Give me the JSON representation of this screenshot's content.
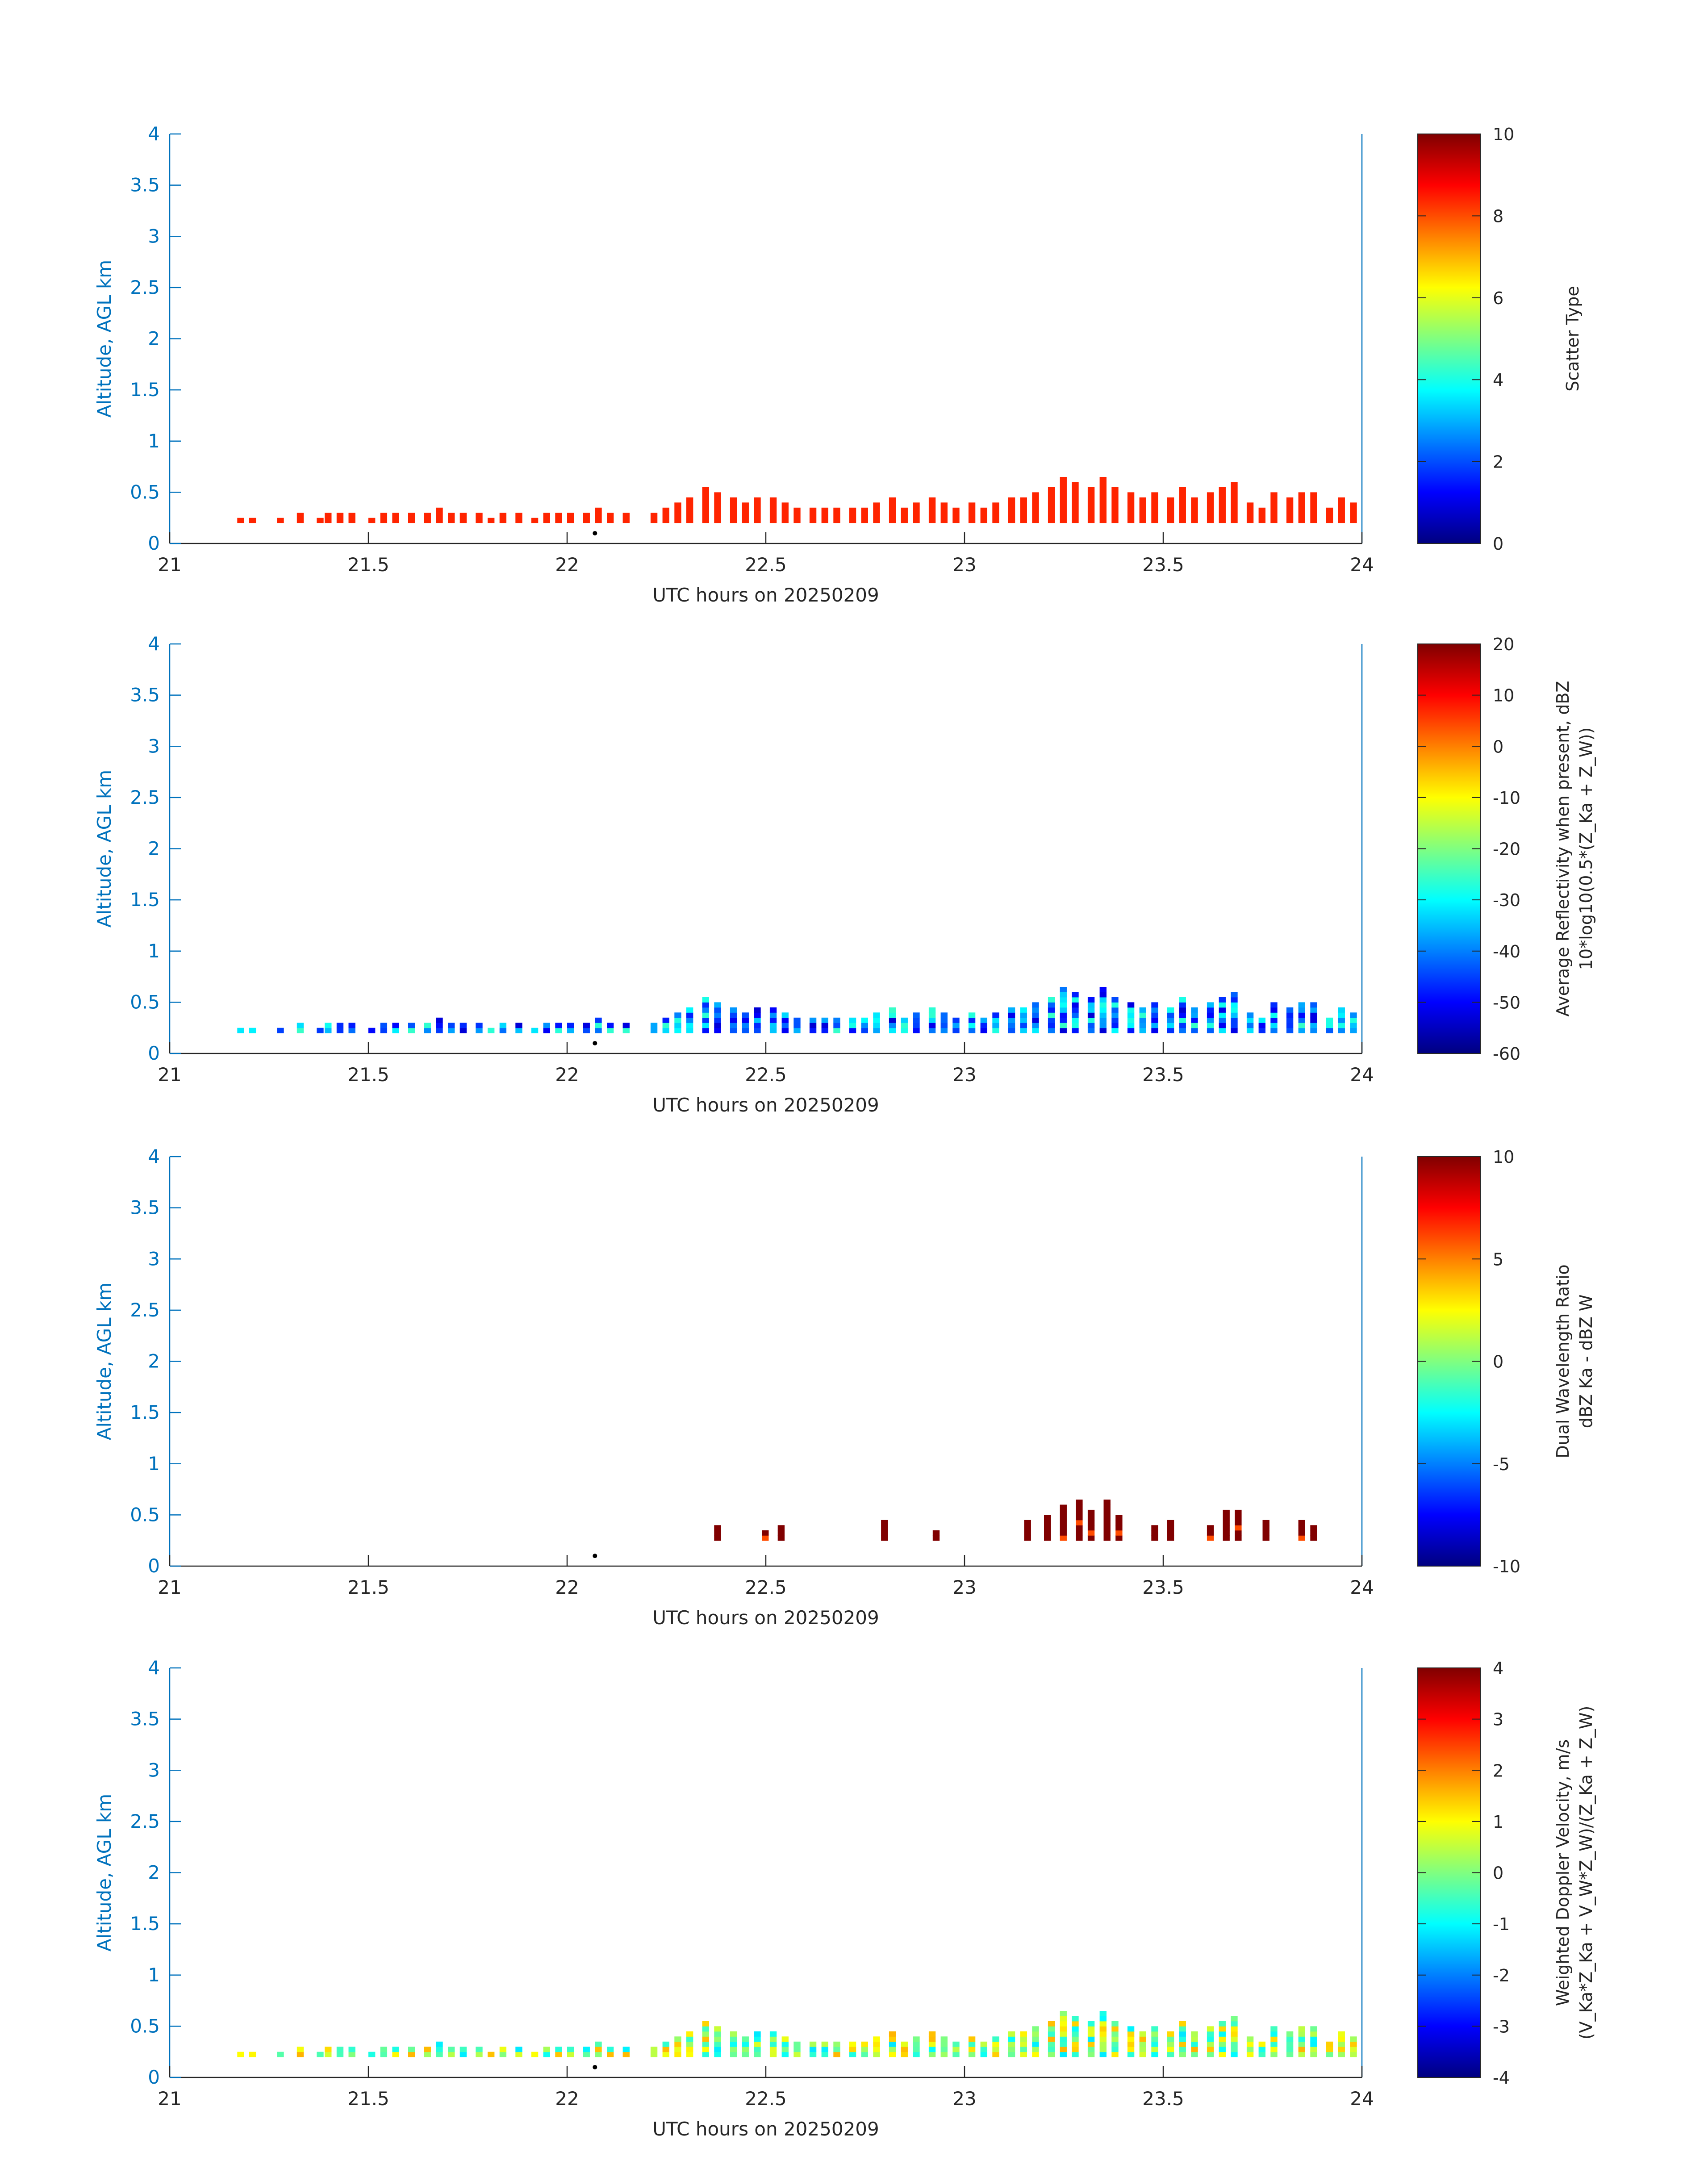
{
  "figure": {
    "xlabel": "UTC hours on 20250209",
    "ylabel": "Altitude, AGL km"
  },
  "chart_data": [
    {
      "type": "heatmap",
      "panel": 1,
      "xlim": [
        21,
        24
      ],
      "ylim": [
        0,
        4
      ],
      "xticks": [
        "21",
        "21.5",
        "22",
        "22.5",
        "23",
        "23.5",
        "24"
      ],
      "yticks": [
        "0",
        "0.5",
        "1",
        "1.5",
        "2",
        "2.5",
        "3",
        "3.5",
        "4"
      ],
      "xlabel": "UTC hours on 20250209",
      "ylabel": "Altitude, AGL km",
      "colorbar": {
        "label": [
          "Scatter Type"
        ],
        "range": [
          0,
          10
        ],
        "ticks": [
          "0",
          "2",
          "4",
          "6",
          "8",
          "10"
        ]
      },
      "field": "scatter_type",
      "grid": false
    },
    {
      "type": "heatmap",
      "panel": 2,
      "xlim": [
        21,
        24
      ],
      "ylim": [
        0,
        4
      ],
      "xticks": [
        "21",
        "21.5",
        "22",
        "22.5",
        "23",
        "23.5",
        "24"
      ],
      "yticks": [
        "0",
        "0.5",
        "1",
        "1.5",
        "2",
        "2.5",
        "3",
        "3.5",
        "4"
      ],
      "xlabel": "UTC hours on 20250209",
      "ylabel": "Altitude, AGL km",
      "colorbar": {
        "label": [
          "Average Reflectivity when present, dBZ",
          "10*log10(0.5*(Z_Ka + Z_W))"
        ],
        "range": [
          -60,
          20
        ],
        "ticks": [
          "-60",
          "-50",
          "-40",
          "-30",
          "-20",
          "-10",
          "0",
          "10",
          "20"
        ]
      },
      "field": "reflectivity",
      "grid": false
    },
    {
      "type": "heatmap",
      "panel": 3,
      "xlim": [
        21,
        24
      ],
      "ylim": [
        0,
        4
      ],
      "xticks": [
        "21",
        "21.5",
        "22",
        "22.5",
        "23",
        "23.5",
        "24"
      ],
      "yticks": [
        "0",
        "0.5",
        "1",
        "1.5",
        "2",
        "2.5",
        "3",
        "3.5",
        "4"
      ],
      "xlabel": "UTC hours on 20250209",
      "ylabel": "Altitude, AGL km",
      "colorbar": {
        "label": [
          "Dual Wavelength Ratio",
          "dBZ Ka - dBZ W"
        ],
        "range": [
          -10,
          10
        ],
        "ticks": [
          "-10",
          "-5",
          "0",
          "5",
          "10"
        ]
      },
      "field": "dwr",
      "grid": false
    },
    {
      "type": "heatmap",
      "panel": 4,
      "xlim": [
        21,
        24
      ],
      "ylim": [
        0,
        4
      ],
      "xticks": [
        "21",
        "21.5",
        "22",
        "22.5",
        "23",
        "23.5",
        "24"
      ],
      "yticks": [
        "0",
        "0.5",
        "1",
        "1.5",
        "2",
        "2.5",
        "3",
        "3.5",
        "4"
      ],
      "xlabel": "UTC hours on 20250209",
      "ylabel": "Altitude, AGL km",
      "colorbar": {
        "label": [
          "Weighted Doppler Velocity, m/s",
          "(V_Ka*Z_Ka + V_W*Z_W)/(Z_Ka + Z_W)"
        ],
        "range": [
          -4,
          4
        ],
        "ticks": [
          "-4",
          "-3",
          "-2",
          "-1",
          "0",
          "1",
          "2",
          "3",
          "4"
        ]
      },
      "field": "velocity",
      "grid": false
    }
  ],
  "data_columns": {
    "x_step_hours": 0.0167,
    "cells": [
      [
        21.17,
        0.2,
        0.25
      ],
      [
        21.2,
        0.2,
        0.25
      ],
      [
        21.27,
        0.2,
        0.25
      ],
      [
        21.32,
        0.2,
        0.3
      ],
      [
        21.37,
        0.2,
        0.25
      ],
      [
        21.39,
        0.2,
        0.3
      ],
      [
        21.42,
        0.2,
        0.3
      ],
      [
        21.45,
        0.2,
        0.3
      ],
      [
        21.5,
        0.2,
        0.25
      ],
      [
        21.53,
        0.2,
        0.3
      ],
      [
        21.56,
        0.2,
        0.3
      ],
      [
        21.6,
        0.2,
        0.3
      ],
      [
        21.64,
        0.2,
        0.3
      ],
      [
        21.67,
        0.2,
        0.35
      ],
      [
        21.7,
        0.2,
        0.3
      ],
      [
        21.73,
        0.2,
        0.3
      ],
      [
        21.77,
        0.2,
        0.3
      ],
      [
        21.8,
        0.2,
        0.25
      ],
      [
        21.83,
        0.2,
        0.3
      ],
      [
        21.87,
        0.2,
        0.3
      ],
      [
        21.91,
        0.2,
        0.25
      ],
      [
        21.94,
        0.2,
        0.3
      ],
      [
        21.97,
        0.2,
        0.3
      ],
      [
        22.0,
        0.2,
        0.3
      ],
      [
        22.04,
        0.2,
        0.3
      ],
      [
        22.07,
        0.2,
        0.35
      ],
      [
        22.1,
        0.2,
        0.3
      ],
      [
        22.14,
        0.2,
        0.3
      ],
      [
        22.21,
        0.2,
        0.3
      ],
      [
        22.24,
        0.2,
        0.35
      ],
      [
        22.27,
        0.2,
        0.4
      ],
      [
        22.3,
        0.2,
        0.45
      ],
      [
        22.34,
        0.2,
        0.55
      ],
      [
        22.37,
        0.2,
        0.5
      ],
      [
        22.41,
        0.2,
        0.45
      ],
      [
        22.44,
        0.2,
        0.4
      ],
      [
        22.47,
        0.2,
        0.45
      ],
      [
        22.51,
        0.2,
        0.45
      ],
      [
        22.54,
        0.2,
        0.4
      ],
      [
        22.57,
        0.2,
        0.35
      ],
      [
        22.61,
        0.2,
        0.35
      ],
      [
        22.64,
        0.2,
        0.35
      ],
      [
        22.67,
        0.2,
        0.35
      ],
      [
        22.71,
        0.2,
        0.35
      ],
      [
        22.74,
        0.2,
        0.35
      ],
      [
        22.77,
        0.2,
        0.4
      ],
      [
        22.81,
        0.2,
        0.45
      ],
      [
        22.84,
        0.2,
        0.35
      ],
      [
        22.87,
        0.2,
        0.4
      ],
      [
        22.91,
        0.2,
        0.45
      ],
      [
        22.94,
        0.2,
        0.4
      ],
      [
        22.97,
        0.2,
        0.35
      ],
      [
        23.01,
        0.2,
        0.4
      ],
      [
        23.04,
        0.2,
        0.35
      ],
      [
        23.07,
        0.2,
        0.4
      ],
      [
        23.11,
        0.2,
        0.45
      ],
      [
        23.14,
        0.2,
        0.45
      ],
      [
        23.17,
        0.2,
        0.5
      ],
      [
        23.21,
        0.2,
        0.55
      ],
      [
        23.24,
        0.2,
        0.65
      ],
      [
        23.27,
        0.2,
        0.6
      ],
      [
        23.31,
        0.2,
        0.55
      ],
      [
        23.34,
        0.2,
        0.65
      ],
      [
        23.37,
        0.2,
        0.55
      ],
      [
        23.41,
        0.2,
        0.5
      ],
      [
        23.44,
        0.2,
        0.45
      ],
      [
        23.47,
        0.2,
        0.5
      ],
      [
        23.51,
        0.2,
        0.45
      ],
      [
        23.54,
        0.2,
        0.55
      ],
      [
        23.57,
        0.2,
        0.45
      ],
      [
        23.61,
        0.2,
        0.5
      ],
      [
        23.64,
        0.2,
        0.55
      ],
      [
        23.67,
        0.2,
        0.6
      ],
      [
        23.71,
        0.2,
        0.4
      ],
      [
        23.74,
        0.2,
        0.35
      ],
      [
        23.77,
        0.2,
        0.5
      ],
      [
        23.81,
        0.2,
        0.45
      ],
      [
        23.84,
        0.2,
        0.5
      ],
      [
        23.87,
        0.2,
        0.5
      ],
      [
        23.91,
        0.2,
        0.35
      ],
      [
        23.94,
        0.2,
        0.45
      ],
      [
        23.97,
        0.2,
        0.4
      ]
    ],
    "dwr_cells": [
      [
        22.37,
        0.25,
        0.4
      ],
      [
        22.49,
        0.25,
        0.35
      ],
      [
        22.53,
        0.25,
        0.4
      ],
      [
        22.79,
        0.25,
        0.45
      ],
      [
        22.92,
        0.25,
        0.35
      ],
      [
        23.15,
        0.25,
        0.45
      ],
      [
        23.2,
        0.25,
        0.5
      ],
      [
        23.24,
        0.25,
        0.6
      ],
      [
        23.28,
        0.25,
        0.65
      ],
      [
        23.31,
        0.25,
        0.55
      ],
      [
        23.35,
        0.25,
        0.65
      ],
      [
        23.38,
        0.25,
        0.5
      ],
      [
        23.47,
        0.25,
        0.4
      ],
      [
        23.51,
        0.25,
        0.45
      ],
      [
        23.61,
        0.25,
        0.4
      ],
      [
        23.65,
        0.25,
        0.55
      ],
      [
        23.68,
        0.25,
        0.55
      ],
      [
        23.75,
        0.25,
        0.45
      ],
      [
        23.84,
        0.25,
        0.45
      ],
      [
        23.87,
        0.25,
        0.4
      ]
    ],
    "site_marker": [
      22.07,
      0.1
    ]
  },
  "colors": {
    "axis": "#0072BD",
    "text": "#262626",
    "marker": "#000000"
  }
}
